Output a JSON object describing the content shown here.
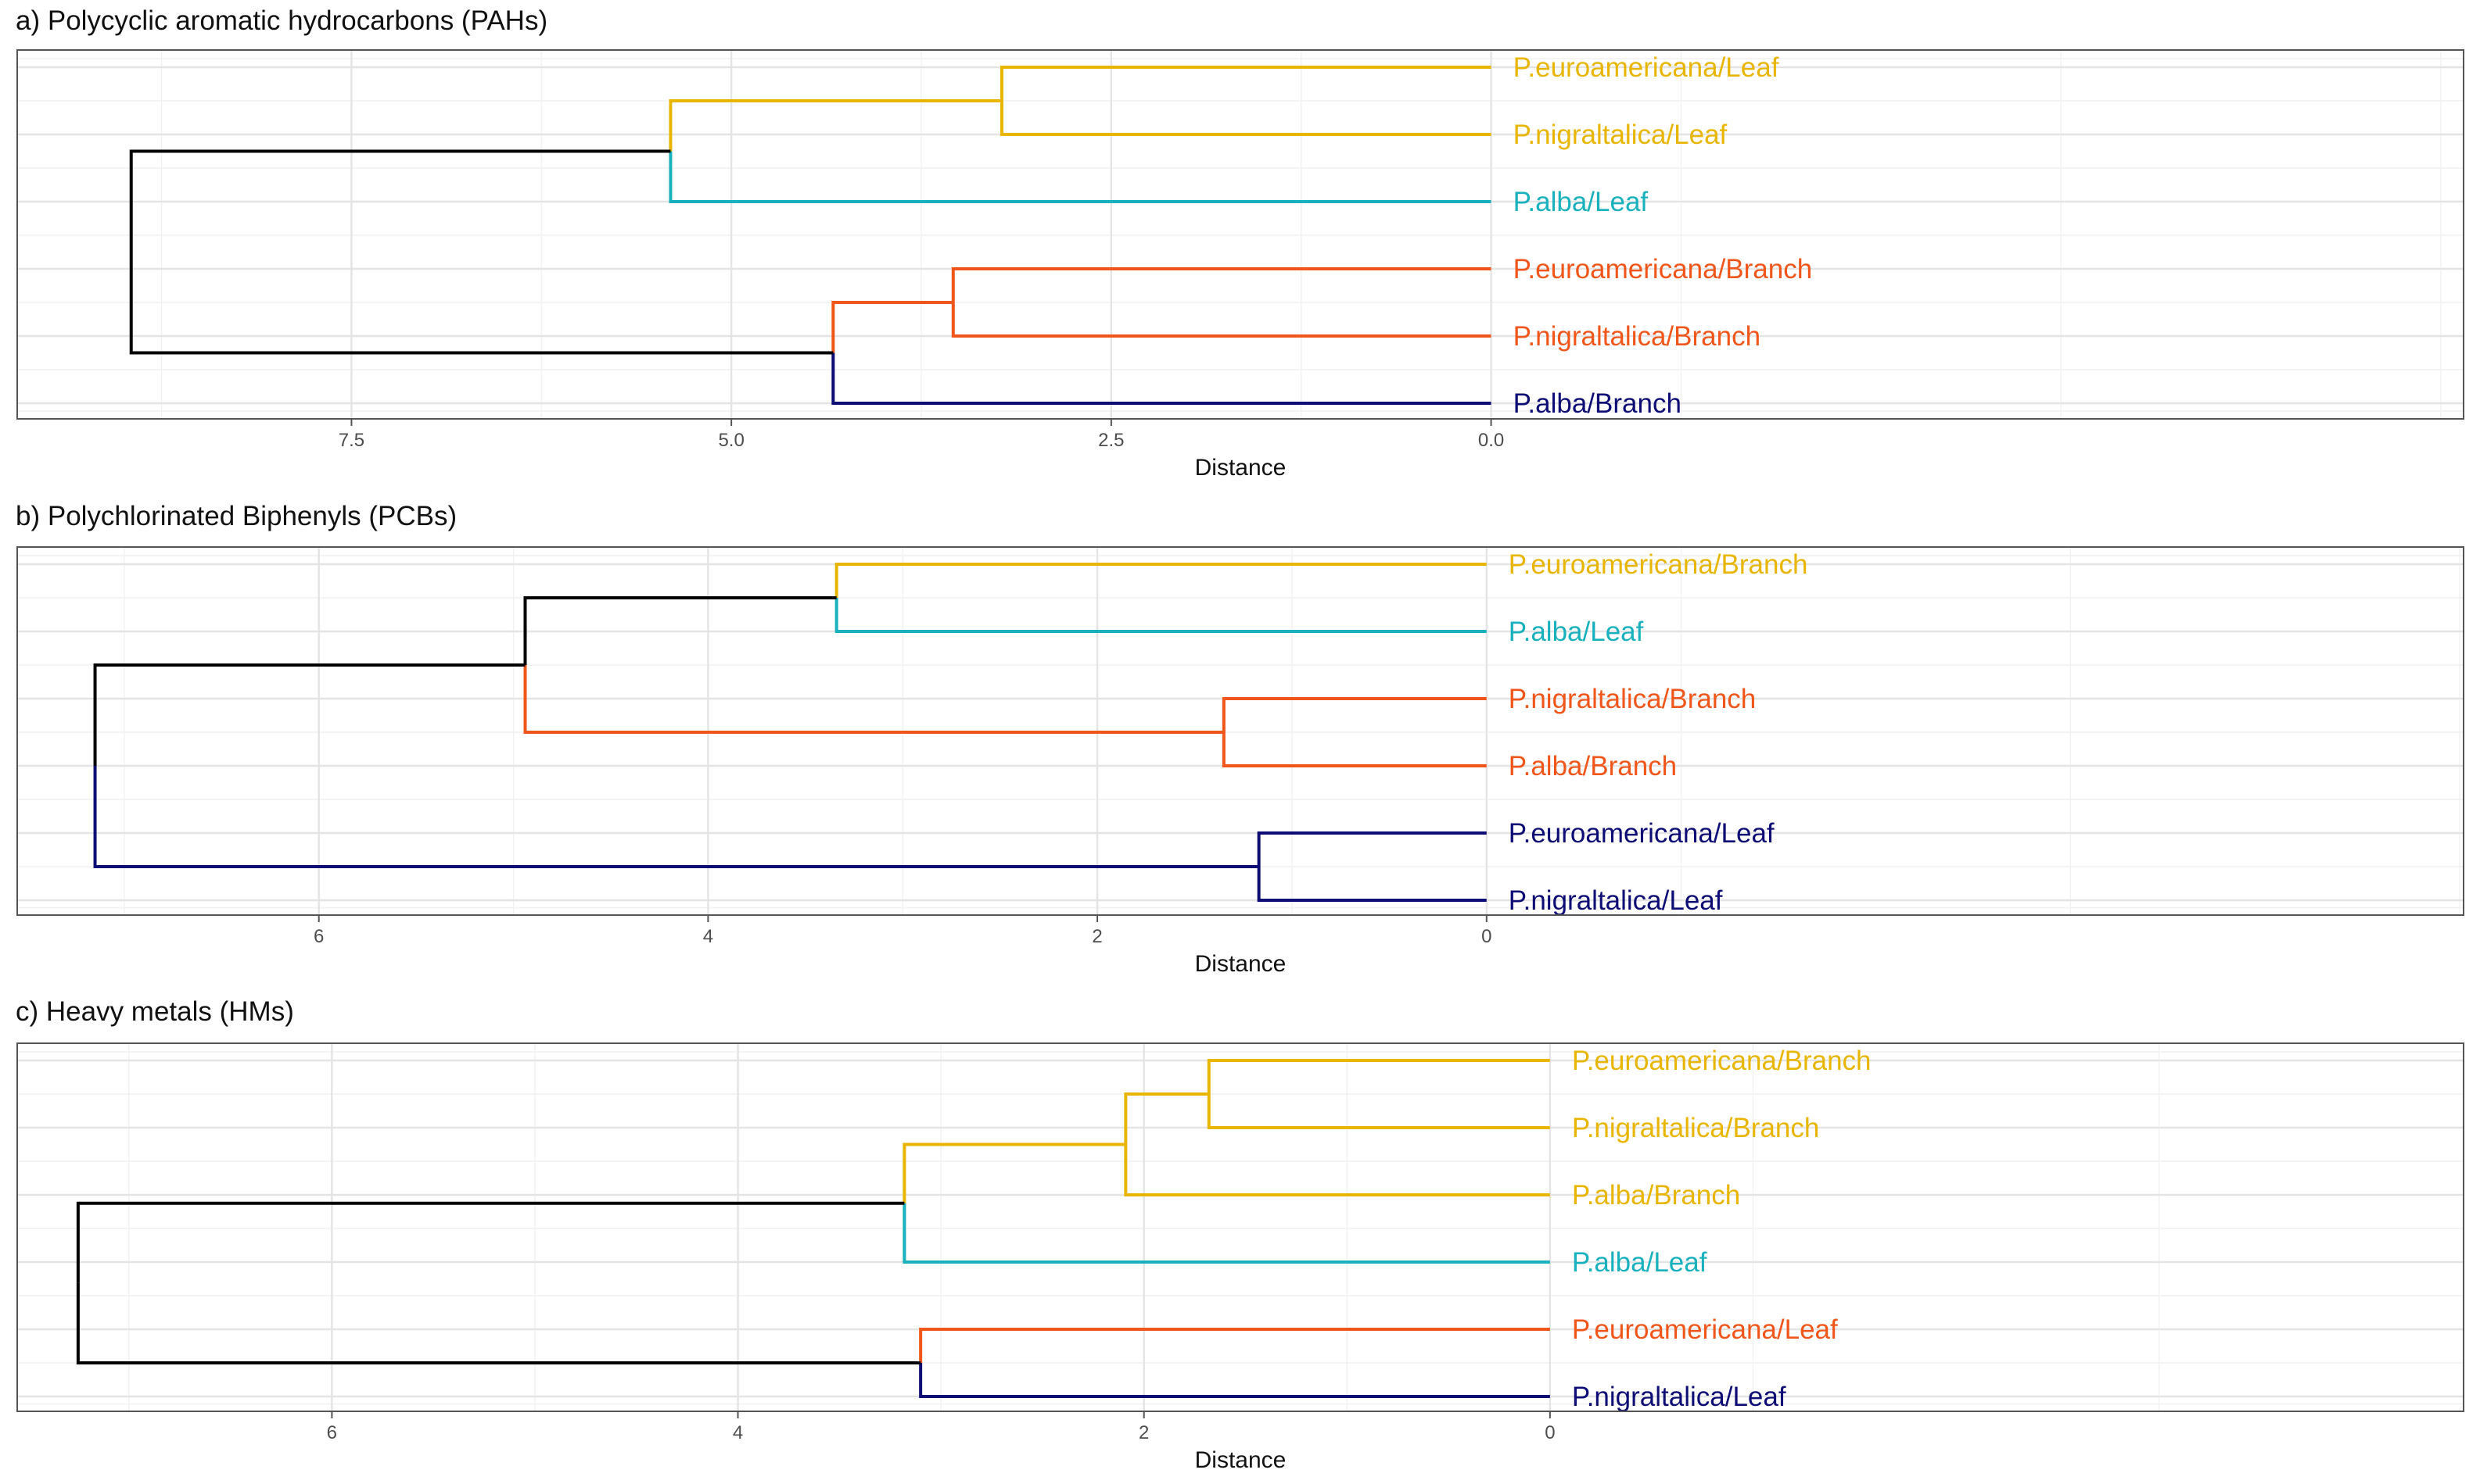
{
  "colors": {
    "yellow": "#e8b500",
    "cyan": "#18b1bd",
    "orange": "#f0561a",
    "navy": "#0d0d75",
    "black": "#000000"
  },
  "chart_data": [
    {
      "type": "dendrogram",
      "title": "a) Polycyclic aromatic hydrocarbons (PAHs)",
      "xlabel": "Distance",
      "ylabel": "",
      "xlim": [
        9.7,
        -6.4
      ],
      "ticks": [
        7.5,
        5.0,
        2.5,
        0.0
      ],
      "tick_labels": [
        "7.5",
        "5.0",
        "2.5",
        "0.0"
      ],
      "grid": true,
      "leaves": [
        {
          "label": "P.euroamericana/Leaf",
          "color": "yellow"
        },
        {
          "label": "P.nigraltalica/Leaf",
          "color": "yellow"
        },
        {
          "label": "P.alba/Leaf",
          "color": "cyan"
        },
        {
          "label": "P.euroamericana/Branch",
          "color": "orange"
        },
        {
          "label": "P.nigraltalica/Branch",
          "color": "orange"
        },
        {
          "label": "P.alba/Branch",
          "color": "navy"
        }
      ],
      "merges": [
        {
          "height": 3.22,
          "left": "L0",
          "right": "L1",
          "color": "yellow",
          "left_color": "yellow",
          "right_color": "yellow"
        },
        {
          "height": 5.4,
          "left": "M0",
          "right": "L2",
          "color": "yellow",
          "left_color": "yellow",
          "right_color": "cyan"
        },
        {
          "height": 3.54,
          "left": "L3",
          "right": "L4",
          "color": "orange",
          "left_color": "orange",
          "right_color": "orange"
        },
        {
          "height": 4.33,
          "left": "M2",
          "right": "L5",
          "color": "orange",
          "left_color": "orange",
          "right_color": "navy"
        },
        {
          "height": 8.95,
          "left": "M1",
          "right": "M3",
          "color": "black",
          "left_color": "black",
          "right_color": "black"
        }
      ]
    },
    {
      "type": "dendrogram",
      "title": "b) Polychlorinated Biphenyls (PCBs)",
      "xlabel": "Distance",
      "ylabel": "",
      "xlim": [
        7.55,
        -5.02
      ],
      "ticks": [
        6,
        4,
        2,
        0
      ],
      "tick_labels": [
        "6",
        "4",
        "2",
        "0"
      ],
      "grid": true,
      "leaves": [
        {
          "label": "P.euroamericana/Branch",
          "color": "yellow"
        },
        {
          "label": "P.alba/Leaf",
          "color": "cyan"
        },
        {
          "label": "P.nigraltalica/Branch",
          "color": "orange"
        },
        {
          "label": "P.alba/Branch",
          "color": "orange"
        },
        {
          "label": "P.euroamericana/Leaf",
          "color": "navy"
        },
        {
          "label": "P.nigraltalica/Leaf",
          "color": "navy"
        }
      ],
      "merges": [
        {
          "height": 3.34,
          "left": "L0",
          "right": "L1",
          "color": "yellow",
          "left_color": "yellow",
          "right_color": "cyan"
        },
        {
          "height": 1.35,
          "left": "L2",
          "right": "L3",
          "color": "orange",
          "left_color": "orange",
          "right_color": "orange"
        },
        {
          "height": 4.94,
          "left": "M0",
          "right": "M1",
          "color": "black",
          "left_color": "black",
          "right_color": "orange"
        },
        {
          "height": 1.17,
          "left": "L4",
          "right": "L5",
          "color": "navy",
          "left_color": "navy",
          "right_color": "navy"
        },
        {
          "height": 7.15,
          "left": "M2",
          "right": "M3",
          "color": "black",
          "left_color": "black",
          "right_color": "navy"
        }
      ]
    },
    {
      "type": "dendrogram",
      "title": "c) Heavy metals (HMs)",
      "xlabel": "Distance",
      "ylabel": "",
      "xlim": [
        7.55,
        -4.5
      ],
      "ticks": [
        6,
        4,
        2,
        0
      ],
      "tick_labels": [
        "6",
        "4",
        "2",
        "0"
      ],
      "grid": true,
      "leaves": [
        {
          "label": "P.euroamericana/Branch",
          "color": "yellow"
        },
        {
          "label": "P.nigraltalica/Branch",
          "color": "yellow"
        },
        {
          "label": "P.alba/Branch",
          "color": "yellow"
        },
        {
          "label": "P.alba/Leaf",
          "color": "cyan"
        },
        {
          "label": "P.euroamericana/Leaf",
          "color": "orange"
        },
        {
          "label": "P.nigraltalica/Leaf",
          "color": "navy"
        }
      ],
      "merges": [
        {
          "height": 1.68,
          "left": "L0",
          "right": "L1",
          "color": "yellow",
          "left_color": "yellow",
          "right_color": "yellow"
        },
        {
          "height": 2.09,
          "left": "M0",
          "right": "L2",
          "color": "yellow",
          "left_color": "yellow",
          "right_color": "yellow"
        },
        {
          "height": 3.18,
          "left": "M1",
          "right": "L3",
          "color": "yellow",
          "left_color": "yellow",
          "right_color": "cyan"
        },
        {
          "height": 3.1,
          "left": "L4",
          "right": "L5",
          "color": "orange",
          "left_color": "orange",
          "right_color": "navy"
        },
        {
          "height": 7.25,
          "left": "M2",
          "right": "M3",
          "color": "black",
          "left_color": "black",
          "right_color": "black"
        }
      ]
    }
  ]
}
